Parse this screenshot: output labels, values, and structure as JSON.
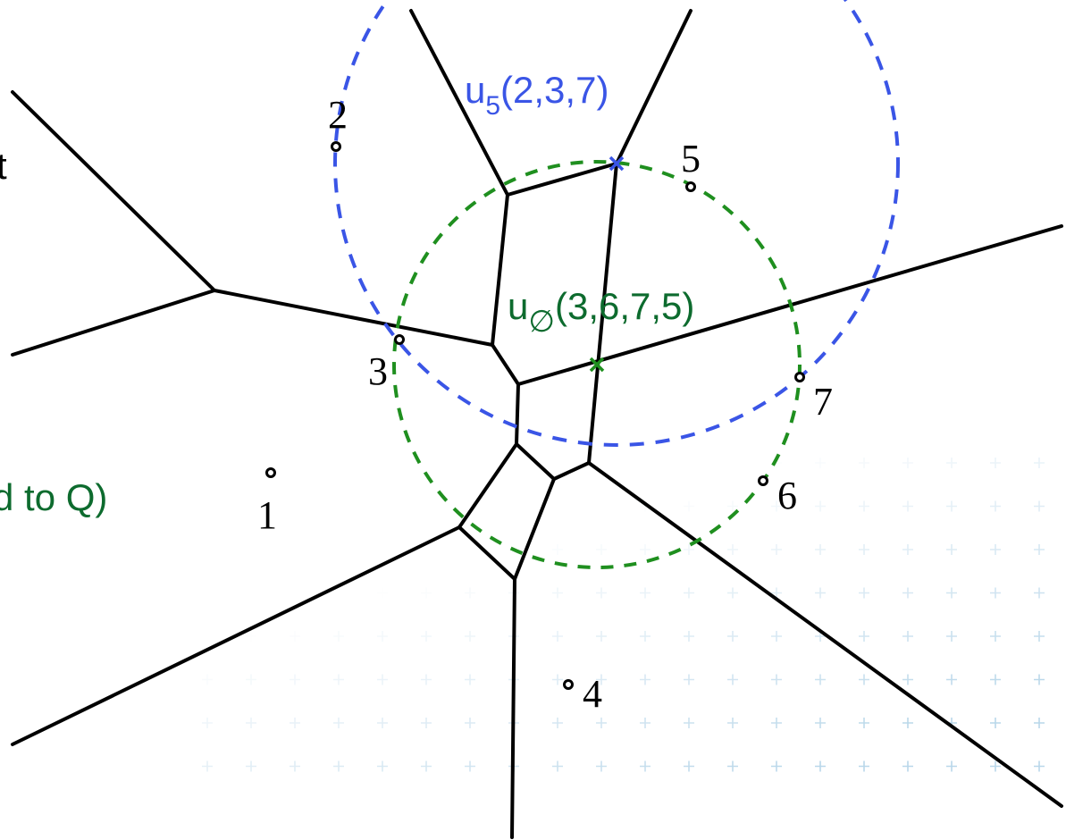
{
  "labels": {
    "partial_left_top": "t",
    "partial_left_mid": "d to Q)",
    "u5_base": "u",
    "u5_sub": "5",
    "u5_args": "(2,3,7)",
    "uempty_base": "u",
    "uempty_sub": "∅",
    "uempty_args": "(3,6,7,5)"
  },
  "sites": [
    {
      "id": "1",
      "label": "1"
    },
    {
      "id": "2",
      "label": "2"
    },
    {
      "id": "3",
      "label": "3"
    },
    {
      "id": "4",
      "label": "4"
    },
    {
      "id": "5",
      "label": "5"
    },
    {
      "id": "6",
      "label": "6"
    },
    {
      "id": "7",
      "label": "7"
    }
  ],
  "colors": {
    "edges": "#000000",
    "blue_circle": "#3a55e6",
    "green_circle": "#1f8f1f",
    "green_text": "#0d6b2e",
    "grid": "#b9d7ea"
  }
}
